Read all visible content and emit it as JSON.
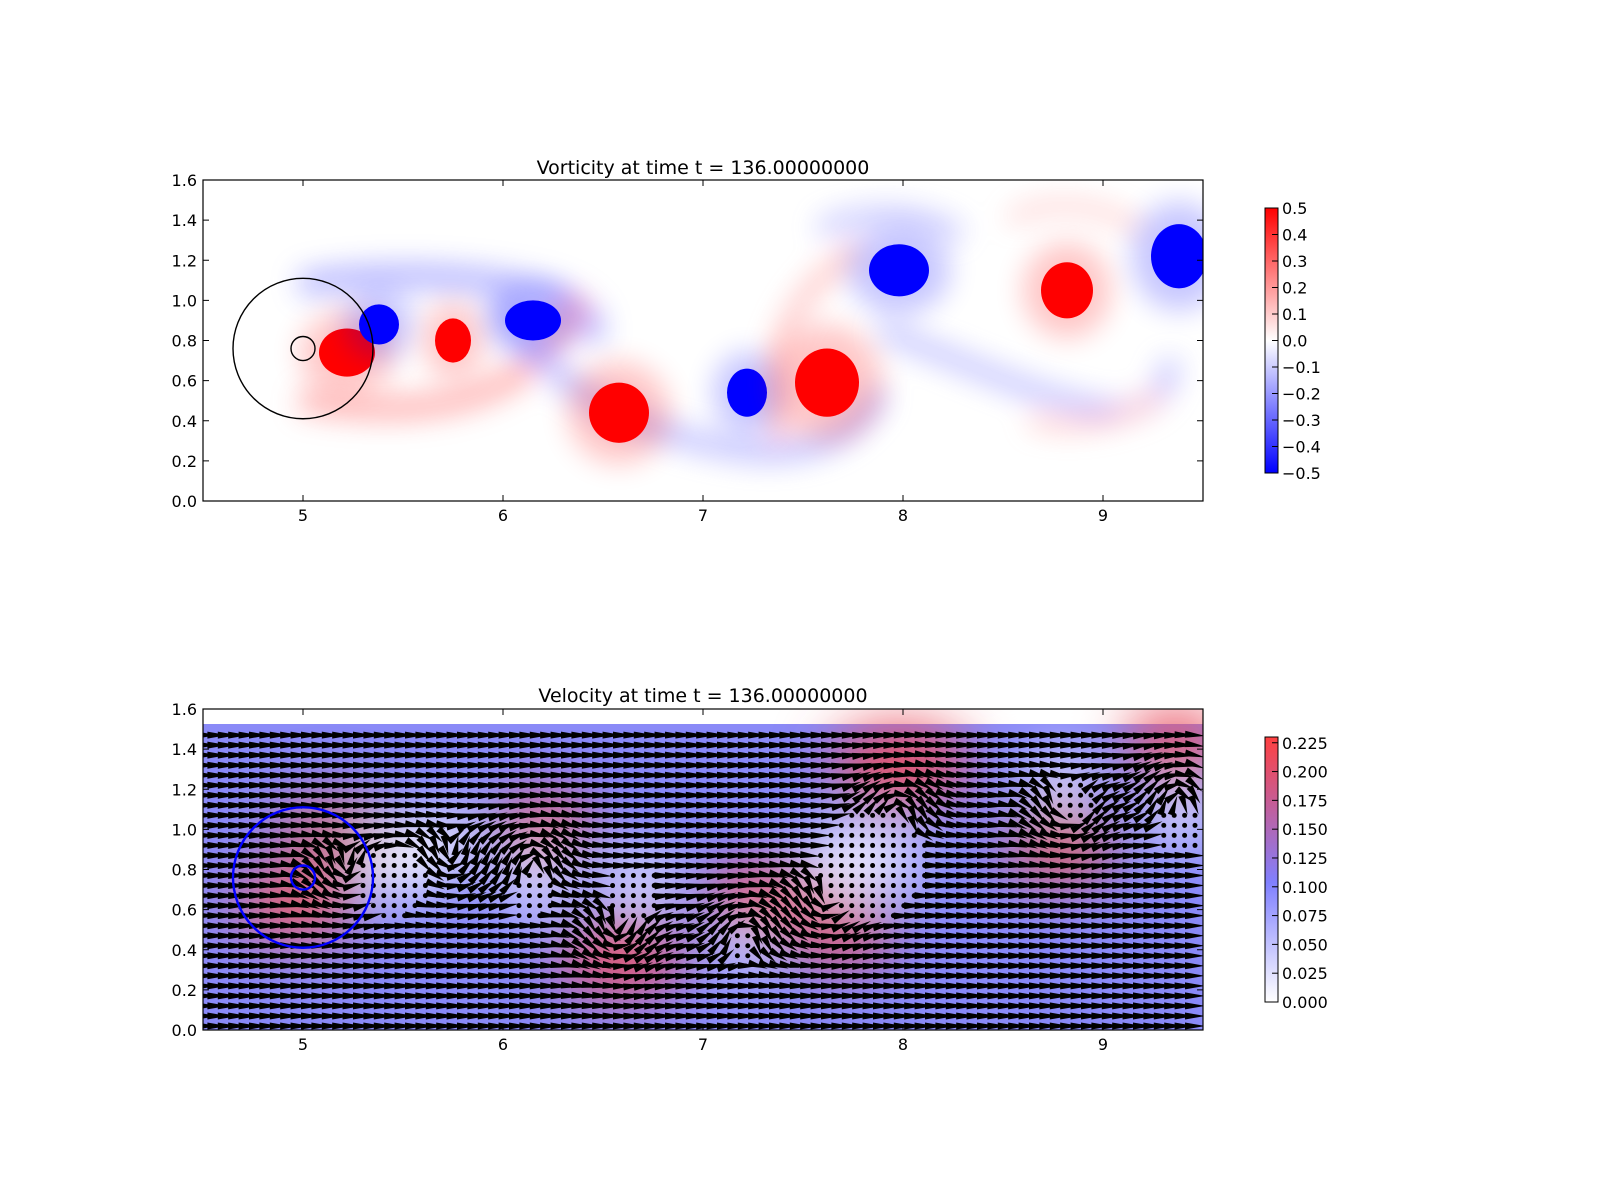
{
  "chart_data": [
    {
      "type": "heatmap",
      "title": "Vorticity at time t =   136.00000000",
      "xlabel": "",
      "ylabel": "",
      "xlim": [
        4.5,
        9.5
      ],
      "ylim": [
        0.0,
        1.6
      ],
      "x_ticks": [
        "5",
        "6",
        "7",
        "8",
        "9"
      ],
      "y_ticks": [
        "0.0",
        "0.2",
        "0.4",
        "0.6",
        "0.8",
        "1.0",
        "1.2",
        "1.4",
        "1.6"
      ],
      "colormap": "bwr",
      "color_low": "#0000ff",
      "color_mid": "#ffffff",
      "color_high": "#ff0000",
      "colorbar_range": [
        -0.5,
        0.5
      ],
      "colorbar_ticks": [
        "0.5",
        "0.4",
        "0.3",
        "0.2",
        "0.1",
        "0.0",
        "−0.1",
        "−0.2",
        "−0.3",
        "−0.4",
        "−0.5"
      ],
      "vortices": [
        {
          "x": 5.22,
          "y": 0.74,
          "rx": 0.14,
          "ry": 0.12,
          "sign": 1
        },
        {
          "x": 5.38,
          "y": 0.88,
          "rx": 0.1,
          "ry": 0.1,
          "sign": -1
        },
        {
          "x": 5.75,
          "y": 0.8,
          "rx": 0.09,
          "ry": 0.11,
          "sign": 1
        },
        {
          "x": 6.15,
          "y": 0.9,
          "rx": 0.14,
          "ry": 0.1,
          "sign": -1
        },
        {
          "x": 6.58,
          "y": 0.44,
          "rx": 0.15,
          "ry": 0.15,
          "sign": 1
        },
        {
          "x": 7.22,
          "y": 0.54,
          "rx": 0.1,
          "ry": 0.12,
          "sign": -1
        },
        {
          "x": 7.62,
          "y": 0.59,
          "rx": 0.16,
          "ry": 0.17,
          "sign": 1
        },
        {
          "x": 7.98,
          "y": 1.15,
          "rx": 0.15,
          "ry": 0.13,
          "sign": -1
        },
        {
          "x": 8.82,
          "y": 1.05,
          "rx": 0.13,
          "ry": 0.14,
          "sign": 1
        },
        {
          "x": 9.38,
          "y": 1.22,
          "rx": 0.14,
          "ry": 0.16,
          "sign": -1
        }
      ],
      "circles": [
        {
          "x": 5.0,
          "y": 0.76,
          "r": 0.35,
          "color": "#000000"
        },
        {
          "x": 5.0,
          "y": 0.76,
          "r": 0.06,
          "color": "#000000"
        }
      ]
    },
    {
      "type": "heatmap",
      "title": "Velocity at time t =   136.00000000",
      "xlabel": "",
      "ylabel": "",
      "xlim": [
        4.5,
        9.5
      ],
      "ylim": [
        0.0,
        1.6
      ],
      "x_ticks": [
        "5",
        "6",
        "7",
        "8",
        "9"
      ],
      "y_ticks": [
        "0.0",
        "0.2",
        "0.4",
        "0.6",
        "0.8",
        "1.0",
        "1.2",
        "1.4",
        "1.6"
      ],
      "colormap": "white-blue-red",
      "color_low": "#ffffff",
      "color_mid": "#8080ff",
      "color_high": "#ff4040",
      "colorbar_range": [
        0.0,
        0.23
      ],
      "colorbar_ticks": [
        "0.225",
        "0.200",
        "0.175",
        "0.150",
        "0.125",
        "0.100",
        "0.075",
        "0.050",
        "0.025",
        "0.000"
      ],
      "field_top": 1.52,
      "quiver": true,
      "circles": [
        {
          "x": 5.0,
          "y": 0.76,
          "r": 0.35,
          "color": "#0000ff"
        },
        {
          "x": 5.0,
          "y": 0.76,
          "r": 0.06,
          "color": "#0000ff"
        }
      ]
    }
  ]
}
